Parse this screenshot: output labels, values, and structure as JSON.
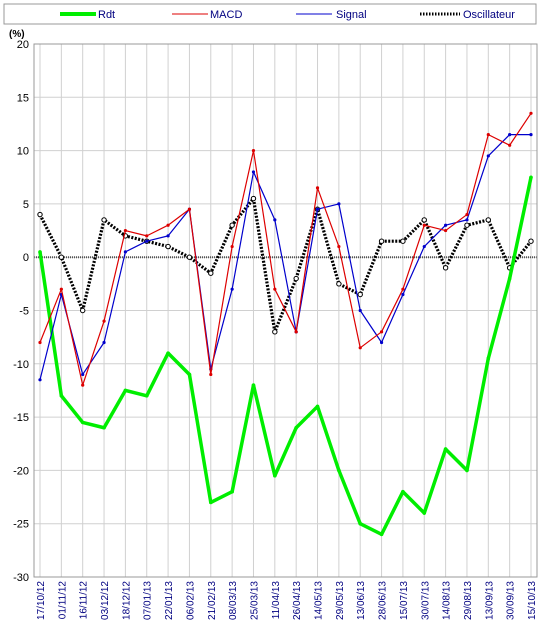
{
  "chart_data": {
    "type": "line",
    "ylabel": "(%)",
    "ylim": [
      -30,
      20
    ],
    "yticks": [
      20,
      15,
      10,
      5,
      0,
      -5,
      -10,
      -15,
      -20,
      -25,
      -30
    ],
    "grid": true,
    "legend_position": "top",
    "x": [
      "17/10/12",
      "01/11/12",
      "16/11/12",
      "03/12/12",
      "18/12/12",
      "07/01/13",
      "22/01/13",
      "06/02/13",
      "21/02/13",
      "08/03/13",
      "25/03/13",
      "11/04/13",
      "26/04/13",
      "14/05/13",
      "29/05/13",
      "13/06/13",
      "28/06/13",
      "15/07/13",
      "30/07/13",
      "14/08/13",
      "29/08/13",
      "13/09/13",
      "30/09/13",
      "15/10/13"
    ],
    "series": [
      {
        "name": "Rdt",
        "color": "#00ee00",
        "marker": "none",
        "values": [
          0.5,
          -13,
          -15.5,
          -16,
          -12.5,
          -13,
          -9,
          -11,
          -23,
          -22,
          -12,
          -20.5,
          -16,
          -14,
          -20,
          -25,
          -26,
          -22,
          -24,
          -18,
          -20,
          -9.5,
          -2,
          7.5
        ]
      },
      {
        "name": "MACD",
        "color": "#dd0000",
        "marker": "dot",
        "values": [
          -8,
          -3,
          -12,
          -6,
          2.5,
          2,
          3,
          4.5,
          -11,
          1,
          10,
          -3,
          -7,
          6.5,
          1,
          -8.5,
          -7,
          -3,
          3,
          2.5,
          4,
          11.5,
          10.5,
          13.5
        ]
      },
      {
        "name": "Signal",
        "color": "#0000cc",
        "marker": "dot",
        "values": [
          -11.5,
          -3.5,
          -11,
          -8,
          0.5,
          1.5,
          2,
          4.5,
          -10.5,
          -3,
          8,
          3.5,
          -7,
          4.5,
          5,
          -5,
          -8,
          -3.5,
          1,
          3,
          3.5,
          9.5,
          11.5,
          11.5
        ]
      },
      {
        "name": "Oscillateur",
        "color": "#000000",
        "marker": "open-circle",
        "values": [
          4,
          0,
          -5,
          3.5,
          2,
          1.5,
          1,
          0,
          -1.5,
          3,
          5.5,
          -7,
          -2,
          4.5,
          -2.5,
          -3.5,
          1.5,
          1.5,
          3.5,
          -1,
          3,
          3.5,
          -1,
          1.5
        ]
      }
    ]
  },
  "legend": {
    "rdt": "Rdt",
    "macd": "MACD",
    "signal": "Signal",
    "oscillateur": "Oscillateur"
  }
}
